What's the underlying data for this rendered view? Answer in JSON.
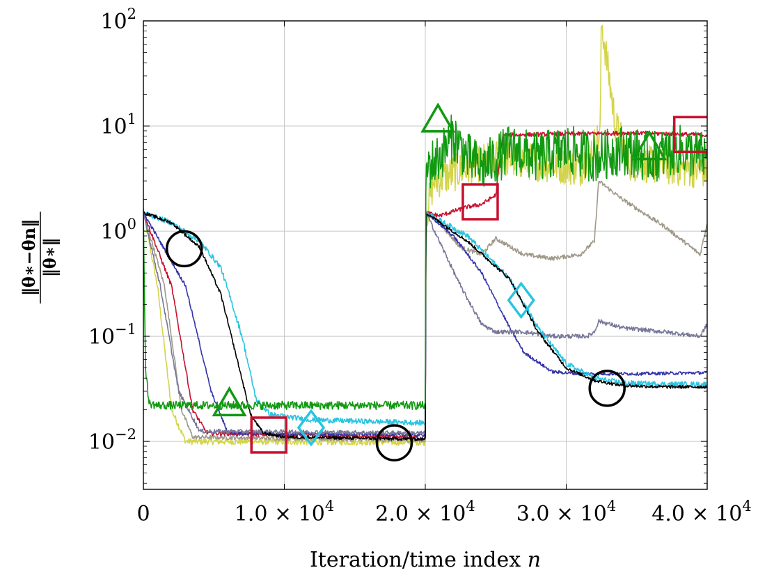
{
  "chart_data": {
    "type": "line",
    "title": "",
    "xlabel": "Iteration/time index",
    "xlabel_var": "n",
    "ylabel": {
      "numerator": "‖θ∗−θn‖",
      "denominator": "‖θ∗‖"
    },
    "xlim": [
      0,
      40000
    ],
    "ylim": [
      0.0035,
      100
    ],
    "yscale": "log",
    "grid": true,
    "legend": "none",
    "x_ticks": [
      {
        "value": 0,
        "mantissa": "0",
        "exp": ""
      },
      {
        "value": 10000,
        "mantissa": "1.0 × 10",
        "exp": "4"
      },
      {
        "value": 20000,
        "mantissa": "2.0 × 10",
        "exp": "4"
      },
      {
        "value": 30000,
        "mantissa": "3.0 × 10",
        "exp": "4"
      },
      {
        "value": 40000,
        "mantissa": "4.0 × 10",
        "exp": "4"
      }
    ],
    "y_ticks": [
      {
        "value": 0.01,
        "base": "10",
        "exp": "−2"
      },
      {
        "value": 0.1,
        "base": "10",
        "exp": "−1"
      },
      {
        "value": 1,
        "base": "10",
        "exp": "0"
      },
      {
        "value": 10,
        "base": "10",
        "exp": "1"
      },
      {
        "value": 100,
        "base": "10",
        "exp": "2"
      }
    ],
    "series": [
      {
        "color": "#d4d44a",
        "noise": 0.03,
        "points": [
          [
            0,
            1.5
          ],
          [
            1000,
            0.3
          ],
          [
            2000,
            0.02
          ],
          [
            3000,
            0.01
          ],
          [
            20000,
            0.0098
          ],
          [
            20050,
            1.4
          ],
          [
            20600,
            3.0
          ],
          [
            23000,
            4.0
          ],
          [
            25000,
            5.0
          ],
          [
            28000,
            4.5
          ],
          [
            31000,
            4.0
          ],
          [
            32400,
            8.0
          ],
          [
            32500,
            100
          ],
          [
            33500,
            10.0
          ],
          [
            34500,
            4.5
          ],
          [
            38000,
            4.0
          ],
          [
            40000,
            3.8
          ]
        ]
      },
      {
        "color": "#a0998a",
        "noise": 0.02,
        "points": [
          [
            0,
            1.5
          ],
          [
            1500,
            0.3
          ],
          [
            2700,
            0.02
          ],
          [
            3500,
            0.011
          ],
          [
            20000,
            0.0102
          ],
          [
            20050,
            1.5
          ],
          [
            21000,
            1.2
          ],
          [
            22500,
            0.7
          ],
          [
            24000,
            0.6
          ],
          [
            25000,
            0.85
          ],
          [
            27000,
            0.6
          ],
          [
            29000,
            0.55
          ],
          [
            31000,
            0.6
          ],
          [
            32000,
            0.8
          ],
          [
            32300,
            3.0
          ],
          [
            34000,
            2.0
          ],
          [
            37000,
            1.1
          ],
          [
            39500,
            0.6
          ],
          [
            40000,
            1.2
          ]
        ]
      },
      {
        "color": "#c8102e",
        "noise": 0.02,
        "points": [
          [
            0,
            1.5
          ],
          [
            2000,
            0.3
          ],
          [
            3500,
            0.02
          ],
          [
            4500,
            0.012
          ],
          [
            20000,
            0.0108
          ],
          [
            20050,
            1.5
          ],
          [
            21000,
            1.4
          ],
          [
            23000,
            1.7
          ],
          [
            24000,
            1.8
          ],
          [
            25000,
            2.2
          ],
          [
            25500,
            8.2
          ],
          [
            30000,
            8.4
          ],
          [
            35000,
            8.6
          ],
          [
            40000,
            8.2
          ]
        ]
      },
      {
        "color": "#3333aa",
        "noise": 0.015,
        "points": [
          [
            0,
            1.5
          ],
          [
            3000,
            0.3
          ],
          [
            4800,
            0.03
          ],
          [
            6000,
            0.012
          ],
          [
            20000,
            0.0115
          ],
          [
            20050,
            1.5
          ],
          [
            22000,
            0.9
          ],
          [
            24000,
            0.4
          ],
          [
            26000,
            0.12
          ],
          [
            27000,
            0.07
          ],
          [
            29000,
            0.046
          ],
          [
            31000,
            0.044
          ],
          [
            35000,
            0.044
          ],
          [
            40000,
            0.045
          ]
        ]
      },
      {
        "color": "#777799",
        "noise": 0.02,
        "points": [
          [
            0,
            1.5
          ],
          [
            1200,
            0.3
          ],
          [
            2500,
            0.03
          ],
          [
            4000,
            0.0125
          ],
          [
            20000,
            0.012
          ],
          [
            20050,
            1.5
          ],
          [
            21000,
            0.8
          ],
          [
            22500,
            0.3
          ],
          [
            24000,
            0.13
          ],
          [
            25000,
            0.11
          ],
          [
            27000,
            0.11
          ],
          [
            29000,
            0.1
          ],
          [
            31500,
            0.1
          ],
          [
            32000,
            0.11
          ],
          [
            32300,
            0.14
          ],
          [
            34000,
            0.12
          ],
          [
            37000,
            0.11
          ],
          [
            39500,
            0.1
          ],
          [
            40000,
            0.13
          ]
        ]
      },
      {
        "color": "#29c4e0",
        "noise": 0.025,
        "points": [
          [
            0,
            1.5
          ],
          [
            2000,
            1.2
          ],
          [
            4000,
            0.8
          ],
          [
            5500,
            0.45
          ],
          [
            7000,
            0.1
          ],
          [
            8000,
            0.025
          ],
          [
            9000,
            0.018
          ],
          [
            12000,
            0.016
          ],
          [
            20000,
            0.015
          ],
          [
            20050,
            1.5
          ],
          [
            23000,
            0.9
          ],
          [
            26000,
            0.35
          ],
          [
            28000,
            0.12
          ],
          [
            30000,
            0.055
          ],
          [
            32000,
            0.04
          ],
          [
            34000,
            0.036
          ],
          [
            37000,
            0.035
          ],
          [
            40000,
            0.035
          ]
        ]
      },
      {
        "color": "#000000",
        "noise": 0.015,
        "points": [
          [
            0,
            1.5
          ],
          [
            2000,
            1.2
          ],
          [
            4000,
            0.7
          ],
          [
            5500,
            0.25
          ],
          [
            6800,
            0.05
          ],
          [
            7600,
            0.018
          ],
          [
            8500,
            0.012
          ],
          [
            10000,
            0.011
          ],
          [
            20000,
            0.0105
          ],
          [
            20050,
            1.5
          ],
          [
            23000,
            0.8
          ],
          [
            26000,
            0.35
          ],
          [
            28000,
            0.11
          ],
          [
            30000,
            0.05
          ],
          [
            32000,
            0.038
          ],
          [
            34000,
            0.034
          ],
          [
            37000,
            0.033
          ],
          [
            40000,
            0.033
          ]
        ]
      },
      {
        "color": "#119911",
        "noise": 0.04,
        "points": [
          [
            0,
            1.5
          ],
          [
            150,
            0.05
          ],
          [
            400,
            0.023
          ],
          [
            1000,
            0.022
          ],
          [
            20000,
            0.022
          ],
          [
            20050,
            4.0
          ],
          [
            21000,
            5.0
          ],
          [
            22000,
            8.0
          ],
          [
            23000,
            5.0
          ],
          [
            24000,
            4.0
          ],
          [
            26000,
            6.0
          ],
          [
            28000,
            5.0
          ],
          [
            30000,
            6.0
          ],
          [
            32000,
            5.0
          ],
          [
            34000,
            6.0
          ],
          [
            36000,
            5.0
          ],
          [
            38000,
            6.0
          ],
          [
            40000,
            5.0
          ]
        ]
      }
    ],
    "markers": [
      {
        "shape": "circle",
        "color": "#000000",
        "x": 2900,
        "y": 0.68
      },
      {
        "shape": "triangle",
        "color": "#119911",
        "x": 6100,
        "y": 0.022
      },
      {
        "shape": "square",
        "color": "#c8102e",
        "x": 8900,
        "y": 0.0115
      },
      {
        "shape": "diamond",
        "color": "#29c4e0",
        "x": 11900,
        "y": 0.0135
      },
      {
        "shape": "circle",
        "color": "#000000",
        "x": 17800,
        "y": 0.0097
      },
      {
        "shape": "triangle",
        "color": "#119911",
        "x": 20900,
        "y": 11.0
      },
      {
        "shape": "square",
        "color": "#c8102e",
        "x": 23900,
        "y": 1.9
      },
      {
        "shape": "diamond",
        "color": "#29c4e0",
        "x": 26800,
        "y": 0.22
      },
      {
        "shape": "circle",
        "color": "#000000",
        "x": 32900,
        "y": 0.032
      },
      {
        "shape": "triangle",
        "color": "#119911",
        "x": 35900,
        "y": 6.0
      },
      {
        "shape": "square",
        "color": "#c8102e",
        "x": 38900,
        "y": 8.3
      }
    ]
  }
}
